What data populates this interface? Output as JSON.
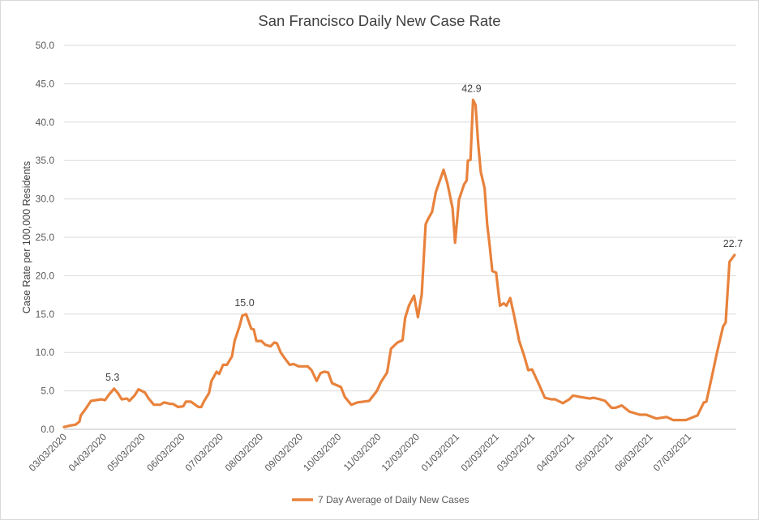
{
  "chart_data": {
    "type": "line",
    "title": "San Francisco Daily New Case Rate",
    "xlabel": "",
    "ylabel": "Case Rate per 100,000 Residents",
    "ylim": [
      0,
      50
    ],
    "yticks": [
      "0.0",
      "5.0",
      "10.0",
      "15.0",
      "20.0",
      "25.0",
      "30.0",
      "35.0",
      "40.0",
      "45.0",
      "50.0"
    ],
    "xlim": [
      "2020-03-03",
      "2021-08-08"
    ],
    "xticks": [
      "03/03/2020",
      "04/03/2020",
      "05/03/2020",
      "06/03/2020",
      "07/03/2020",
      "08/03/2020",
      "09/03/2020",
      "10/03/2020",
      "11/03/2020",
      "12/03/2020",
      "01/03/2021",
      "02/03/2021",
      "03/03/2021",
      "04/03/2021",
      "05/03/2021",
      "06/03/2021",
      "07/03/2021"
    ],
    "grid": "horizontal",
    "legend": "bottom",
    "color": "#E8823C",
    "series": [
      {
        "name": "7 Day Average of Daily New Cases",
        "points": [
          [
            "2020-03-03",
            0.3
          ],
          [
            "2020-03-08",
            0.5
          ],
          [
            "2020-03-12",
            0.6
          ],
          [
            "2020-03-15",
            1.0
          ],
          [
            "2020-03-16",
            1.8
          ],
          [
            "2020-03-20",
            2.7
          ],
          [
            "2020-03-24",
            3.7
          ],
          [
            "2020-03-28",
            3.8
          ],
          [
            "2020-04-01",
            3.9
          ],
          [
            "2020-04-04",
            3.8
          ],
          [
            "2020-04-07",
            4.5
          ],
          [
            "2020-04-11",
            5.3
          ],
          [
            "2020-04-14",
            4.7
          ],
          [
            "2020-04-17",
            3.9
          ],
          [
            "2020-04-21",
            4.0
          ],
          [
            "2020-04-23",
            3.7
          ],
          [
            "2020-04-27",
            4.4
          ],
          [
            "2020-04-30",
            5.2
          ],
          [
            "2020-05-05",
            4.8
          ],
          [
            "2020-05-08",
            4.0
          ],
          [
            "2020-05-12",
            3.2
          ],
          [
            "2020-05-17",
            3.2
          ],
          [
            "2020-05-20",
            3.5
          ],
          [
            "2020-05-25",
            3.3
          ],
          [
            "2020-05-27",
            3.3
          ],
          [
            "2020-05-31",
            2.9
          ],
          [
            "2020-06-04",
            3.0
          ],
          [
            "2020-06-06",
            3.6
          ],
          [
            "2020-06-10",
            3.6
          ],
          [
            "2020-06-14",
            3.1
          ],
          [
            "2020-06-16",
            2.9
          ],
          [
            "2020-06-18",
            2.9
          ],
          [
            "2020-06-20",
            3.6
          ],
          [
            "2020-06-24",
            4.7
          ],
          [
            "2020-06-26",
            6.3
          ],
          [
            "2020-06-30",
            7.5
          ],
          [
            "2020-07-02",
            7.2
          ],
          [
            "2020-07-05",
            8.4
          ],
          [
            "2020-07-08",
            8.4
          ],
          [
            "2020-07-12",
            9.5
          ],
          [
            "2020-07-14",
            11.5
          ],
          [
            "2020-07-18",
            13.5
          ],
          [
            "2020-07-20",
            14.8
          ],
          [
            "2020-07-23",
            15.0
          ],
          [
            "2020-07-27",
            13.1
          ],
          [
            "2020-07-29",
            13.0
          ],
          [
            "2020-07-31",
            11.5
          ],
          [
            "2020-08-04",
            11.5
          ],
          [
            "2020-08-07",
            11.0
          ],
          [
            "2020-08-11",
            10.8
          ],
          [
            "2020-08-14",
            11.3
          ],
          [
            "2020-08-16",
            11.2
          ],
          [
            "2020-08-19",
            10.0
          ],
          [
            "2020-08-21",
            9.5
          ],
          [
            "2020-08-26",
            8.4
          ],
          [
            "2020-08-29",
            8.5
          ],
          [
            "2020-09-02",
            8.2
          ],
          [
            "2020-09-09",
            8.2
          ],
          [
            "2020-09-12",
            7.7
          ],
          [
            "2020-09-16",
            6.3
          ],
          [
            "2020-09-19",
            7.3
          ],
          [
            "2020-09-22",
            7.5
          ],
          [
            "2020-09-25",
            7.4
          ],
          [
            "2020-09-28",
            6.0
          ],
          [
            "2020-10-05",
            5.5
          ],
          [
            "2020-10-08",
            4.2
          ],
          [
            "2020-10-13",
            3.2
          ],
          [
            "2020-10-18",
            3.5
          ],
          [
            "2020-10-27",
            3.7
          ],
          [
            "2020-11-02",
            5.0
          ],
          [
            "2020-11-05",
            6.1
          ],
          [
            "2020-11-10",
            7.4
          ],
          [
            "2020-11-13",
            10.5
          ],
          [
            "2020-11-18",
            11.3
          ],
          [
            "2020-11-22",
            11.6
          ],
          [
            "2020-11-24",
            14.5
          ],
          [
            "2020-11-27",
            16.1
          ],
          [
            "2020-12-01",
            17.4
          ],
          [
            "2020-12-04",
            14.6
          ],
          [
            "2020-12-07",
            17.6
          ],
          [
            "2020-12-10",
            26.7
          ],
          [
            "2020-12-12",
            27.4
          ],
          [
            "2020-12-15",
            28.3
          ],
          [
            "2020-12-18",
            30.9
          ],
          [
            "2020-12-24",
            33.8
          ],
          [
            "2020-12-27",
            32.0
          ],
          [
            "2020-12-31",
            28.8
          ],
          [
            "2021-01-02",
            24.3
          ],
          [
            "2021-01-05",
            29.9
          ],
          [
            "2021-01-09",
            31.9
          ],
          [
            "2021-01-11",
            32.4
          ],
          [
            "2021-01-12",
            35.0
          ],
          [
            "2021-01-14",
            35.1
          ],
          [
            "2021-01-16",
            42.9
          ],
          [
            "2021-01-18",
            42.2
          ],
          [
            "2021-01-20",
            37.2
          ],
          [
            "2021-01-22",
            33.5
          ],
          [
            "2021-01-25",
            31.4
          ],
          [
            "2021-01-27",
            26.7
          ],
          [
            "2021-01-29",
            23.9
          ],
          [
            "2021-01-31",
            20.6
          ],
          [
            "2021-02-03",
            20.4
          ],
          [
            "2021-02-06",
            16.1
          ],
          [
            "2021-02-09",
            16.4
          ],
          [
            "2021-02-11",
            16.1
          ],
          [
            "2021-02-14",
            17.1
          ],
          [
            "2021-02-17",
            14.8
          ],
          [
            "2021-02-21",
            11.5
          ],
          [
            "2021-02-25",
            9.5
          ],
          [
            "2021-02-28",
            7.7
          ],
          [
            "2021-03-03",
            7.8
          ],
          [
            "2021-03-08",
            6.0
          ],
          [
            "2021-03-13",
            4.1
          ],
          [
            "2021-03-18",
            3.9
          ],
          [
            "2021-03-21",
            3.9
          ],
          [
            "2021-03-27",
            3.4
          ],
          [
            "2021-04-01",
            3.9
          ],
          [
            "2021-04-04",
            4.4
          ],
          [
            "2021-04-10",
            4.2
          ],
          [
            "2021-04-17",
            4.0
          ],
          [
            "2021-04-20",
            4.1
          ],
          [
            "2021-04-25",
            3.9
          ],
          [
            "2021-04-29",
            3.7
          ],
          [
            "2021-05-04",
            2.8
          ],
          [
            "2021-05-07",
            2.8
          ],
          [
            "2021-05-12",
            3.1
          ],
          [
            "2021-05-18",
            2.3
          ],
          [
            "2021-05-26",
            1.9
          ],
          [
            "2021-05-31",
            1.9
          ],
          [
            "2021-06-08",
            1.4
          ],
          [
            "2021-06-16",
            1.6
          ],
          [
            "2021-06-21",
            1.2
          ],
          [
            "2021-07-01",
            1.2
          ],
          [
            "2021-07-10",
            1.8
          ],
          [
            "2021-07-15",
            3.5
          ],
          [
            "2021-07-17",
            3.6
          ],
          [
            "2021-07-22",
            7.4
          ],
          [
            "2021-07-25",
            9.8
          ],
          [
            "2021-07-30",
            13.4
          ],
          [
            "2021-08-01",
            13.9
          ],
          [
            "2021-08-04",
            21.8
          ],
          [
            "2021-08-08",
            22.7
          ]
        ]
      }
    ],
    "annotations": [
      {
        "date": "2020-04-11",
        "value": 5.3,
        "label": "5.3"
      },
      {
        "date": "2020-07-23",
        "value": 15.0,
        "label": "15.0"
      },
      {
        "date": "2021-01-16",
        "value": 42.9,
        "label": "42.9"
      },
      {
        "date": "2021-08-08",
        "value": 22.7,
        "label": "22.7"
      }
    ]
  }
}
